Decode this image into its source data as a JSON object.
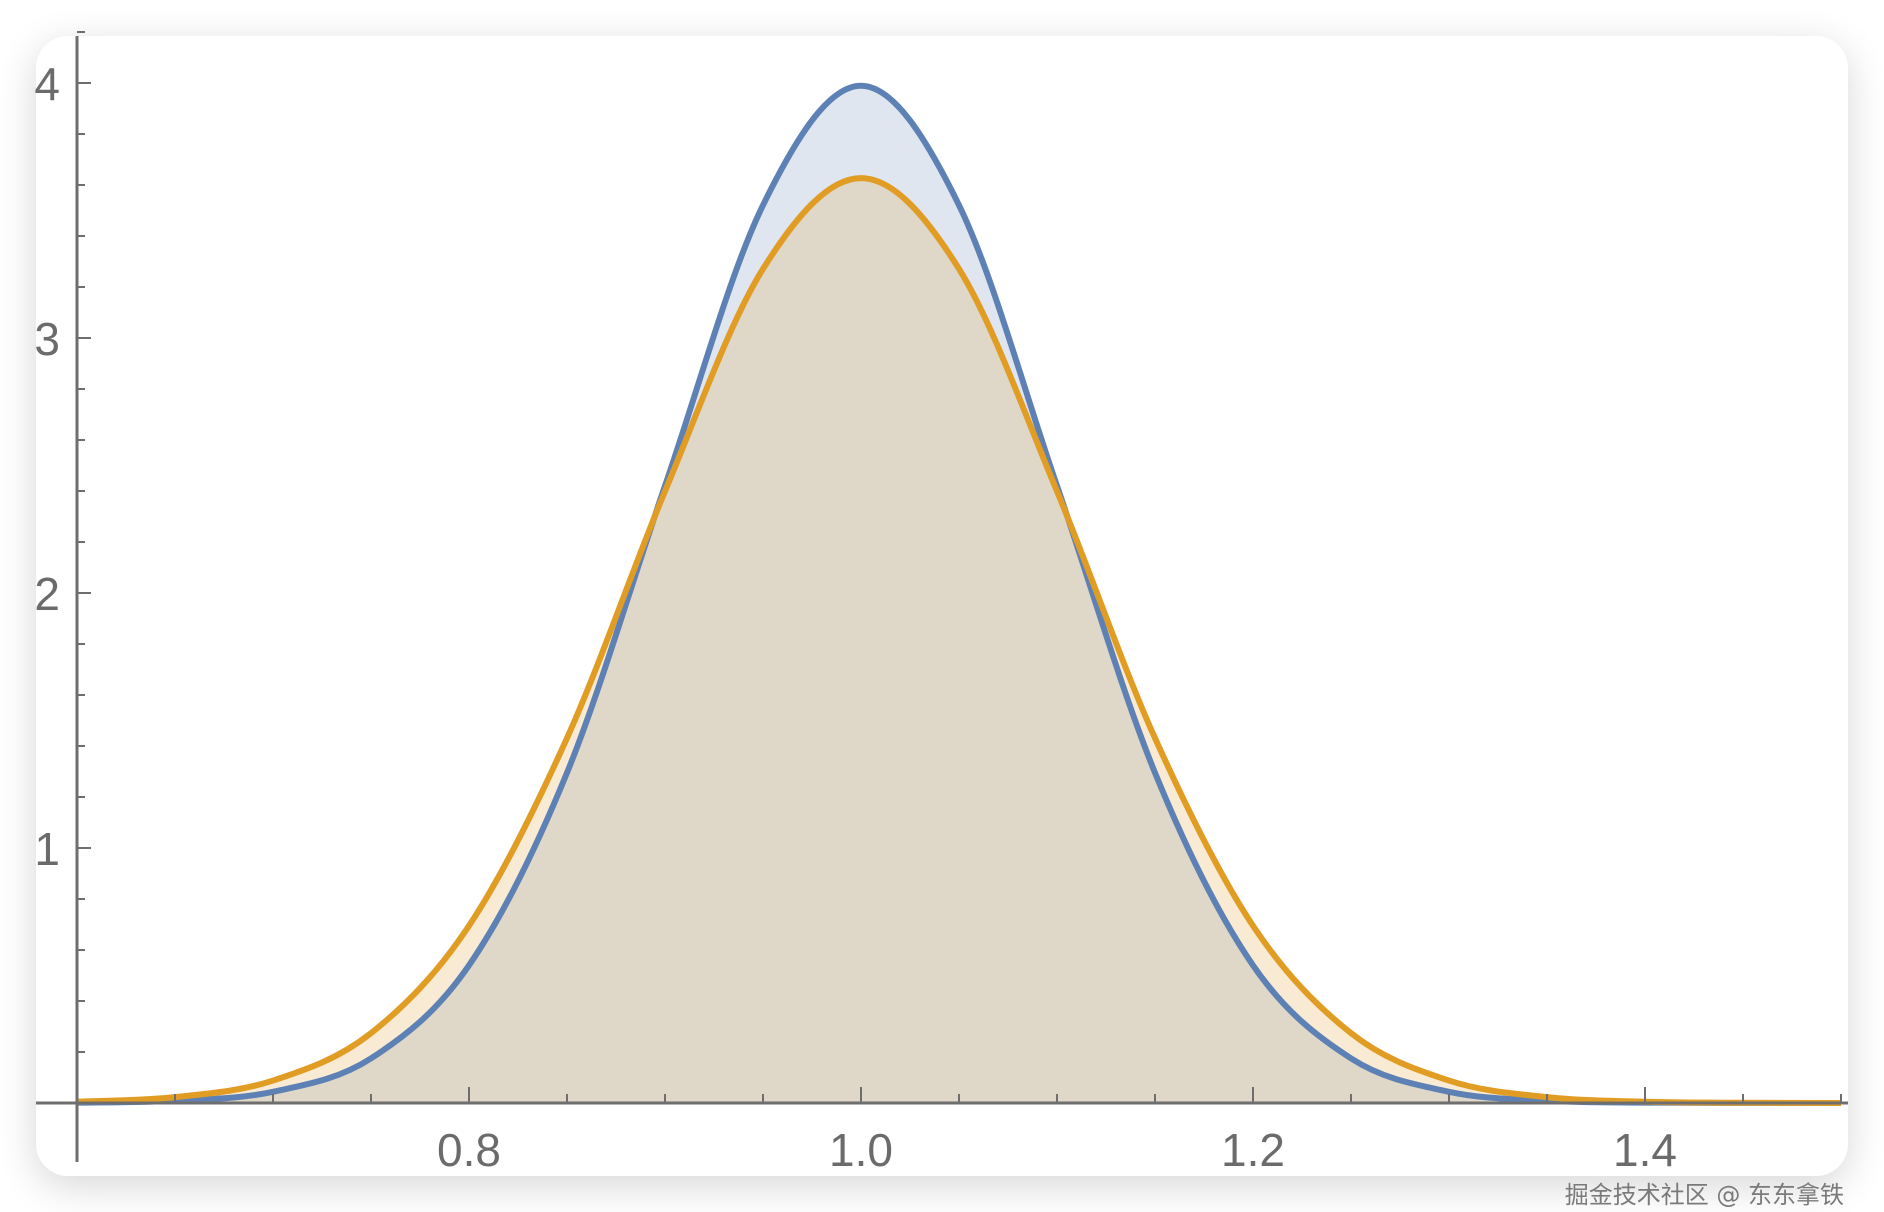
{
  "chart_data": {
    "type": "area",
    "title": "",
    "xlabel": "",
    "ylabel": "",
    "xlim": [
      0.6,
      1.5
    ],
    "ylim": [
      0,
      4.2
    ],
    "grid": false,
    "x_ticks": [
      {
        "value": 0.8,
        "label": "0.8"
      },
      {
        "value": 1.0,
        "label": "1.0"
      },
      {
        "value": 1.2,
        "label": "1.2"
      },
      {
        "value": 1.4,
        "label": "1.4"
      }
    ],
    "x_minor_step": 0.05,
    "y_ticks": [
      {
        "value": 1,
        "label": "1"
      },
      {
        "value": 2,
        "label": "2"
      },
      {
        "value": 3,
        "label": "3"
      },
      {
        "value": 4,
        "label": "4"
      }
    ],
    "y_minor_step": 0.2,
    "x": [
      0.6,
      0.65,
      0.7,
      0.75,
      0.8,
      0.85,
      0.9,
      0.95,
      1.0,
      1.05,
      1.1,
      1.15,
      1.2,
      1.25,
      1.3,
      1.35,
      1.4,
      1.45,
      1.5
    ],
    "series": [
      {
        "color": "#5E81B5",
        "fill": "#5E81B5",
        "values": [
          0.0013,
          0.0087,
          0.044,
          0.175,
          0.54,
          1.295,
          2.42,
          3.521,
          3.989,
          3.521,
          2.42,
          1.295,
          0.54,
          0.175,
          0.044,
          0.0087,
          0.0013,
          0.0002,
          0
        ]
      },
      {
        "color": "#E19C24",
        "fill": "#E19C24",
        "values": [
          0.0049,
          0.023,
          0.088,
          0.274,
          0.695,
          1.431,
          2.399,
          3.271,
          3.627,
          3.271,
          2.399,
          1.431,
          0.695,
          0.274,
          0.088,
          0.023,
          0.0049,
          0.0008,
          0.0001
        ]
      }
    ]
  },
  "watermark": "掘金技术社区 @ 东东拿铁"
}
